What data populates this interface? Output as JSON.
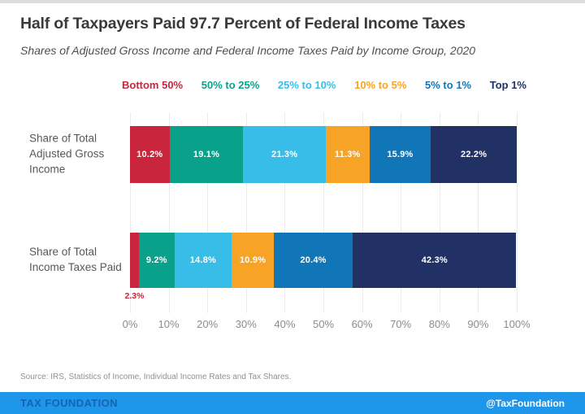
{
  "title": "Half of Taxpayers Paid 97.7 Percent of Federal Income Taxes",
  "subtitle": "Shares of Adjusted Gross Income and Federal Income Taxes Paid by Income Group, 2020",
  "source": "Source: IRS, Statistics of Income, Individual Income Rates and Tax Shares.",
  "footer": {
    "brand": "TAX FOUNDATION",
    "handle": "@TaxFoundation",
    "bg_color": "#1e96ea",
    "brand_color": "#1863b0",
    "handle_color": "#ffffff"
  },
  "colors": {
    "grid": "#ececec",
    "title_text": "#3a3a3c",
    "subtitle_text": "#4f4f51",
    "row_label_text": "#57585a",
    "tick_text": "#8c8c8c",
    "source_text": "#909090"
  },
  "chart_data": {
    "type": "bar",
    "orientation": "horizontal",
    "stacked": true,
    "grid": true,
    "legend_position": "top",
    "xlim": [
      0,
      100
    ],
    "x_ticks": [
      "0%",
      "10%",
      "20%",
      "30%",
      "40%",
      "50%",
      "60%",
      "70%",
      "80%",
      "90%",
      "100%"
    ],
    "categories": [
      "Share of Total Adjusted Gross Income",
      "Share of Total Income Taxes Paid"
    ],
    "series": [
      {
        "name": "Bottom 50%",
        "color": "#c9253c",
        "values": [
          10.2,
          2.3
        ],
        "labels": [
          "10.2%",
          "2.3%"
        ]
      },
      {
        "name": "50% to 25%",
        "color": "#0aa18b",
        "values": [
          19.1,
          9.2
        ],
        "labels": [
          "19.1%",
          "9.2%"
        ]
      },
      {
        "name": "25% to 10%",
        "color": "#38bde9",
        "values": [
          21.3,
          14.8
        ],
        "labels": [
          "21.3%",
          "14.8%"
        ]
      },
      {
        "name": "10% to 5%",
        "color": "#f7a325",
        "values": [
          11.3,
          10.9
        ],
        "labels": [
          "11.3%",
          "10.9%"
        ]
      },
      {
        "name": "5% to 1%",
        "color": "#1176b7",
        "values": [
          15.9,
          20.4
        ],
        "labels": [
          "15.9%",
          "20.4%"
        ]
      },
      {
        "name": "Top 1%",
        "color": "#213166",
        "values": [
          22.2,
          42.3
        ],
        "labels": [
          "22.2%",
          "42.3%"
        ]
      }
    ],
    "min_pct_for_inside_label": 4
  }
}
